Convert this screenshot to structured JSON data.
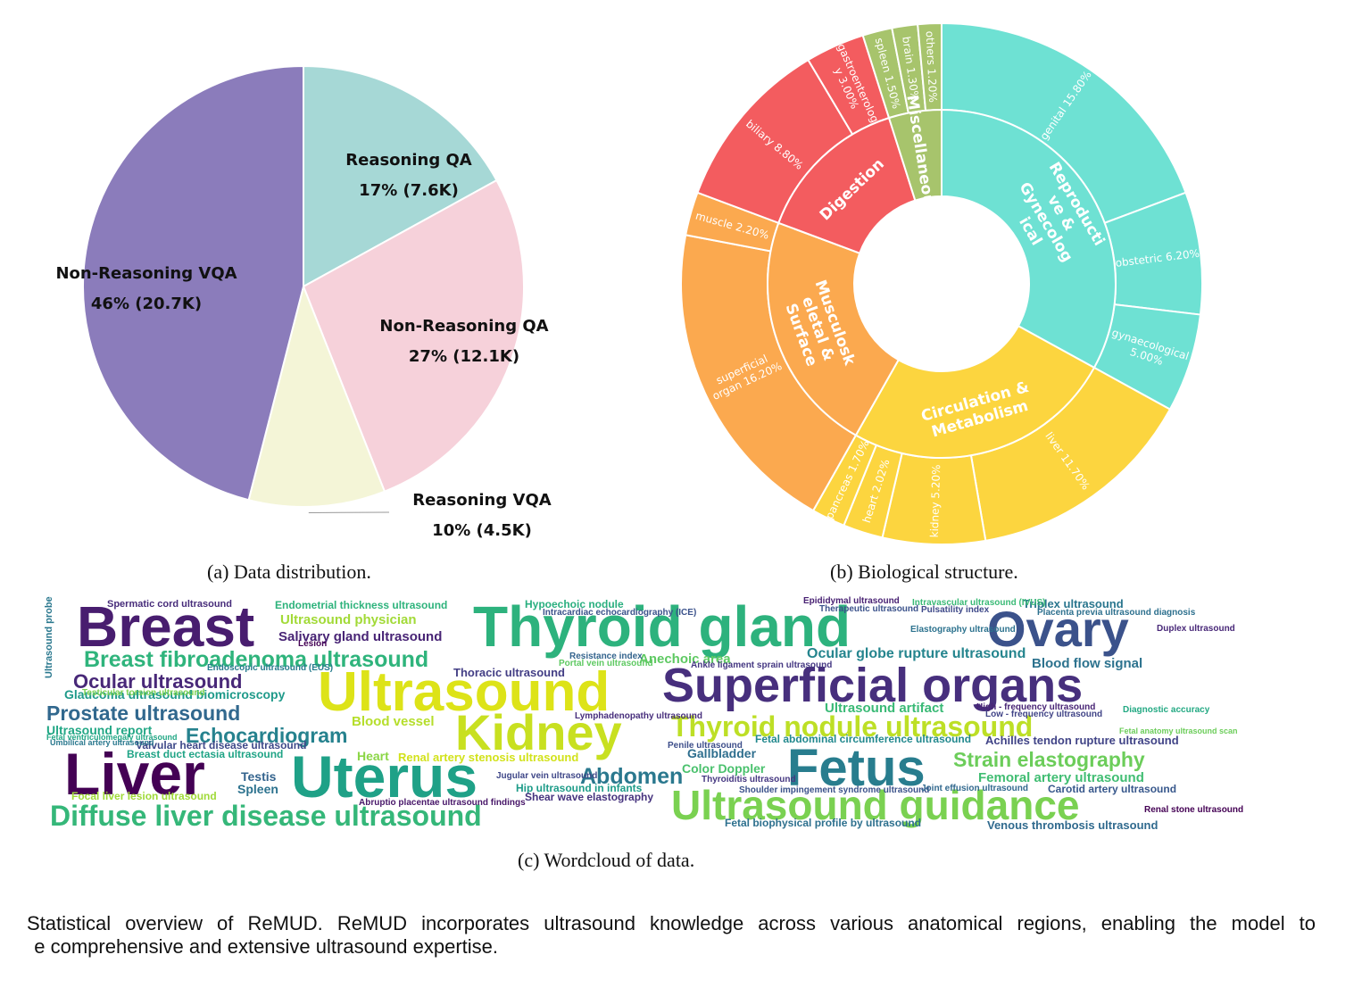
{
  "captions": {
    "a": "(a) Data distribution.",
    "b": "(b) Biological structure.",
    "c": "(c) Wordcloud of data.",
    "bottom_line1": "Statistical overview of ReMUD. ReMUD incorporates ultrasound knowledge across various anatomical regions, enabling the model to",
    "bottom_line2": "e comprehensive and extensive ultrasound expertise."
  },
  "chart_data": [
    {
      "type": "pie",
      "title": "",
      "slices": [
        {
          "label": "Reasoning QA",
          "percent": 17,
          "count": "7.6K",
          "text": "17%  (7.6K)",
          "color": "#a6d8d6"
        },
        {
          "label": "Non-Reasoning QA",
          "percent": 27,
          "count": "12.1K",
          "text": "27%  (12.1K)",
          "color": "#f6d1da"
        },
        {
          "label": "Reasoning VQA",
          "percent": 10,
          "count": "4.5K",
          "text": "10%  (4.5K)",
          "color": "#f4f5d7"
        },
        {
          "label": "Non-Reasoning VQA",
          "percent": 46,
          "count": "20.7K",
          "text": "46%  (20.7K)",
          "color": "#8b7cbb"
        }
      ]
    },
    {
      "type": "sunburst",
      "title": "",
      "groups": [
        {
          "label": "Reproductive & Gynecological",
          "label_lines": [
            "Reproducti",
            "ve &",
            "Gynecolog",
            "ical"
          ],
          "color": "#6ee1d3",
          "children": [
            {
              "label": "genital 15.80%",
              "value": 15.8
            },
            {
              "label": "obstetric 6.20%",
              "value": 6.2
            },
            {
              "label": "gynaecological 5.00%",
              "label_lines": [
                "gynaecological",
                "5.00%"
              ],
              "value": 5.0
            }
          ]
        },
        {
          "label": "Circulation & Metabolism",
          "label_lines": [
            "Circulation &",
            "Metabolism"
          ],
          "color": "#fcd53f",
          "children": [
            {
              "label": "liver 11.70%",
              "value": 11.7
            },
            {
              "label": "kidney 5.20%",
              "value": 5.2
            },
            {
              "label": "heart 2.02%",
              "value": 2.02
            },
            {
              "label": "pancreas 1.70%",
              "value": 1.7
            }
          ]
        },
        {
          "label": "Musculoskeletal & Surface",
          "label_lines": [
            "Musculosk",
            "eletal &",
            "Surface"
          ],
          "color": "#fba94f",
          "children": [
            {
              "label": "superficial organ 16.20%",
              "label_lines": [
                "superficial",
                "organ 16.20%"
              ],
              "value": 16.2
            },
            {
              "label": "muscle 2.20%",
              "value": 2.2
            }
          ]
        },
        {
          "label": "Digestion",
          "label_lines": [
            "Digestion"
          ],
          "color": "#f35c5f",
          "children": [
            {
              "label": "biliary 8.80%",
              "value": 8.8
            },
            {
              "label": "gastroenterology 3.00%",
              "label_lines": [
                "gastroenterolog",
                "y 3.00%"
              ],
              "value": 3.0
            }
          ]
        },
        {
          "label": "Miscellaneous",
          "label_lines": [
            "Miscellaneous"
          ],
          "color": "#a7c46c",
          "children": [
            {
              "label": "spleen 1.50%",
              "value": 1.5
            },
            {
              "label": "brain 1.30%",
              "value": 1.3
            },
            {
              "label": "others 1.20%",
              "value": 1.2
            }
          ]
        }
      ]
    },
    {
      "type": "wordcloud",
      "words": [
        {
          "text": "Breast",
          "size": 64,
          "color": "#481d6f"
        },
        {
          "text": "Thyroid gland",
          "size": 64,
          "color": "#2db27d"
        },
        {
          "text": "Ovary",
          "size": 56,
          "color": "#3b528b"
        },
        {
          "text": "Superficial organs",
          "size": 54,
          "color": "#472f7d"
        },
        {
          "text": "Ultrasound",
          "size": 62,
          "color": "#dde318"
        },
        {
          "text": "Kidney",
          "size": 56,
          "color": "#c8e020"
        },
        {
          "text": "Liver",
          "size": 66,
          "color": "#440154"
        },
        {
          "text": "Uterus",
          "size": 66,
          "color": "#1fa187"
        },
        {
          "text": "Fetus",
          "size": 58,
          "color": "#287d8e"
        },
        {
          "text": "Ultrasound guidance",
          "size": 46,
          "color": "#7ad151"
        },
        {
          "text": "Diffuse liver disease ultrasound",
          "size": 32,
          "color": "#35b779"
        },
        {
          "text": "Thyroid nodule ultrasound",
          "size": 32,
          "color": "#bddf26"
        },
        {
          "text": "Breast fibroadenoma ultrasound",
          "size": 25,
          "color": "#2fb47c"
        },
        {
          "text": "Prostate ultrasound",
          "size": 23,
          "color": "#31688e"
        },
        {
          "text": "Echocardiogram",
          "size": 23,
          "color": "#26828e"
        },
        {
          "text": "Abdomen",
          "size": 25,
          "color": "#2a788e"
        },
        {
          "text": "Strain elastography",
          "size": 23,
          "color": "#6ccd5a"
        },
        {
          "text": "Ocular ultrasound",
          "size": 22,
          "color": "#482878"
        },
        {
          "text": "Ocular globe rupture ultrasound",
          "size": 16,
          "color": "#25858e"
        },
        {
          "text": "Salivary gland ultrasound",
          "size": 15,
          "color": "#482475"
        },
        {
          "text": "Ultrasound physician",
          "size": 15,
          "color": "#a2da37"
        },
        {
          "text": "Blood flow signal",
          "size": 15,
          "color": "#2c728e"
        },
        {
          "text": "Anechoic area",
          "size": 15,
          "color": "#5ec962"
        },
        {
          "text": "Ultrasound artifact",
          "size": 15,
          "color": "#3aba76"
        },
        {
          "text": "Blood vessel",
          "size": 15,
          "color": "#b5de2b"
        },
        {
          "text": "Glaucoma ultrasound biomicroscopy",
          "size": 14,
          "color": "#1f9a8a"
        },
        {
          "text": "Ultrasound report",
          "size": 14,
          "color": "#22a785"
        },
        {
          "text": "Femoral artery ultrasound",
          "size": 15,
          "color": "#40bd72"
        },
        {
          "text": "Color Doppler",
          "size": 14,
          "color": "#4ac16d"
        },
        {
          "text": "Gallbladder",
          "size": 14,
          "color": "#2e6e8e"
        },
        {
          "text": "Testis",
          "size": 14,
          "color": "#33638d"
        },
        {
          "text": "Spleen",
          "size": 14,
          "color": "#2c728e"
        },
        {
          "text": "Heart",
          "size": 14,
          "color": "#8bd646"
        },
        {
          "text": "Thoracic ultrasound",
          "size": 13,
          "color": "#433e85"
        },
        {
          "text": "Renal artery stenosis ultrasound",
          "size": 13,
          "color": "#d2e21b"
        },
        {
          "text": "Hip ultrasound in infants",
          "size": 12,
          "color": "#1e9c89"
        },
        {
          "text": "Achilles tendon rupture ultrasound",
          "size": 13,
          "color": "#414487"
        },
        {
          "text": "Shear wave elastography",
          "size": 12,
          "color": "#46337e"
        },
        {
          "text": "Focal liver lesion ultrasound",
          "size": 12,
          "color": "#a0da39"
        },
        {
          "text": "Valvular heart disease ultrasound",
          "size": 12,
          "color": "#3e4989"
        },
        {
          "text": "Breast duct ectasia ultrasound",
          "size": 12,
          "color": "#20a486"
        },
        {
          "text": "Endometrial thickness ultrasound",
          "size": 12,
          "color": "#2eb37c"
        },
        {
          "text": "Fetal abdominal circumference ultrasound",
          "size": 12,
          "color": "#23898e"
        },
        {
          "text": "Fetal biophysical profile by ultrasound",
          "size": 12,
          "color": "#2d708e"
        },
        {
          "text": "Venous thrombosis ultrasound",
          "size": 13,
          "color": "#306a8e"
        },
        {
          "text": "Carotid artery ultrasound",
          "size": 12,
          "color": "#38588c"
        },
        {
          "text": "Triplex ultrasound",
          "size": 13,
          "color": "#2a768e"
        },
        {
          "text": "Hypoechoic nodule",
          "size": 12,
          "color": "#29af7f"
        },
        {
          "text": "Spermatic cord ultrasound",
          "size": 11,
          "color": "#472c7a"
        },
        {
          "text": "Epididymal ultrasound",
          "size": 10,
          "color": "#482173"
        },
        {
          "text": "Thyroiditis ultrasound",
          "size": 10,
          "color": "#453781"
        },
        {
          "text": "Penile ultrasound",
          "size": 10,
          "color": "#3d4e8a"
        },
        {
          "text": "Lymphadenopathy ultrasound",
          "size": 10,
          "color": "#472e7c"
        },
        {
          "text": "Abruptio placentae ultrasound findings",
          "size": 10,
          "color": "#481769"
        },
        {
          "text": "Jugular vein ultrasound",
          "size": 10,
          "color": "#3f4788"
        },
        {
          "text": "Shoulder impingement syndrome ultrasound",
          "size": 10,
          "color": "#3b528b"
        },
        {
          "text": "Ankle ligament sprain ultrasound",
          "size": 10,
          "color": "#453882"
        },
        {
          "text": "Ultrasound probe",
          "size": 11,
          "color": "#2a788e",
          "vertical": true
        },
        {
          "text": "Endoscopic ultrasound (EUS)",
          "size": 10,
          "color": "#287c8e"
        },
        {
          "text": "Lesion",
          "size": 10,
          "color": "#440154"
        },
        {
          "text": "Portal vein ultrasound",
          "size": 10,
          "color": "#5ec962"
        },
        {
          "text": "Resistance index",
          "size": 10,
          "color": "#33638d"
        },
        {
          "text": "Intracardiac echocardiography (ICE)",
          "size": 10,
          "color": "#3b528b"
        },
        {
          "text": "Intravascular ultrasound (IVUS)",
          "size": 10,
          "color": "#3aba76"
        },
        {
          "text": "Placenta previa ultrasound diagnosis",
          "size": 10,
          "color": "#2d708e"
        },
        {
          "text": "Duplex ultrasound",
          "size": 10,
          "color": "#482878"
        },
        {
          "text": "Diagnostic accuracy",
          "size": 10,
          "color": "#23a983"
        },
        {
          "text": "Elastography ultrasound",
          "size": 10,
          "color": "#2c728e"
        },
        {
          "text": "Pulsatility index",
          "size": 10,
          "color": "#3e4989"
        },
        {
          "text": "Joint effusion ultrasound",
          "size": 10,
          "color": "#31688e"
        },
        {
          "text": "Renal stone ultrasound",
          "size": 10,
          "color": "#440154"
        },
        {
          "text": "High - frequency ultrasound",
          "size": 10,
          "color": "#482475"
        },
        {
          "text": "Low - frequency ultrasound",
          "size": 10,
          "color": "#414487"
        },
        {
          "text": "Testicular torsion ultrasound",
          "size": 10,
          "color": "#7ad151"
        },
        {
          "text": "Therapeutic ultrasound",
          "size": 10,
          "color": "#3b528b"
        },
        {
          "text": "Fetal ventriculomegaly ultrasound",
          "size": 9,
          "color": "#22a785"
        },
        {
          "text": "Umbilical artery ultrasound",
          "size": 9,
          "color": "#2a788e"
        },
        {
          "text": "Fetal anatomy ultrasound scan",
          "size": 9,
          "color": "#6ccd5a"
        }
      ]
    }
  ]
}
